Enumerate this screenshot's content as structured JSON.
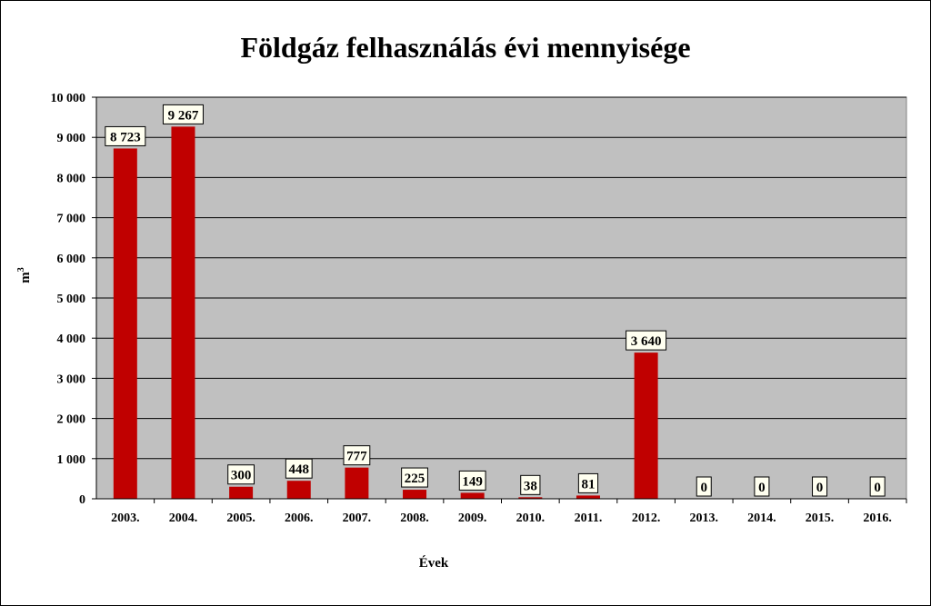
{
  "chart_data": {
    "type": "bar",
    "title": "Földgáz felhasználás évi mennyisége",
    "xlabel": "Évek",
    "ylabel": "m",
    "ylabel_superscript": "3",
    "categories": [
      "2003.",
      "2004.",
      "2005.",
      "2006.",
      "2007.",
      "2008.",
      "2009.",
      "2010.",
      "2011.",
      "2012.",
      "2013.",
      "2014.",
      "2015.",
      "2016."
    ],
    "values": [
      8723,
      9267,
      300,
      448,
      777,
      225,
      149,
      38,
      81,
      3640,
      0,
      0,
      0,
      0
    ],
    "value_labels": [
      "8 723",
      "9 267",
      "300",
      "448",
      "777",
      "225",
      "149",
      "38",
      "81",
      "3 640",
      "0",
      "0",
      "0",
      "0"
    ],
    "ylim": [
      0,
      10000
    ],
    "yticks": [
      0,
      1000,
      2000,
      3000,
      4000,
      5000,
      6000,
      7000,
      8000,
      9000,
      10000
    ],
    "ytick_labels": [
      "0",
      "1 000",
      "2 000",
      "3 000",
      "4 000",
      "5 000",
      "6 000",
      "7 000",
      "8 000",
      "9 000",
      "10 000"
    ],
    "grid": true,
    "legend": "none",
    "colors": {
      "bar": "#c00000",
      "plot_background": "#c0c0c0",
      "gridline": "#000000",
      "label_box": "#fffff0"
    }
  }
}
